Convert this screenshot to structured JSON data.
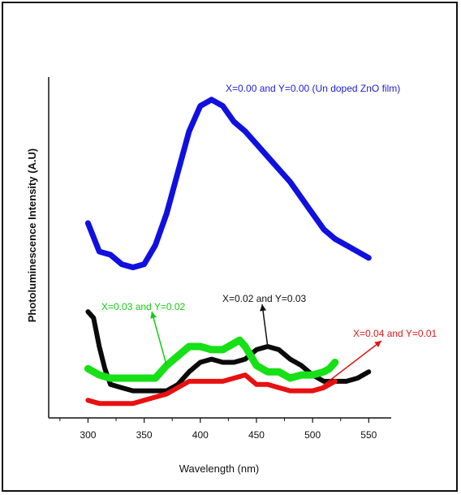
{
  "chart_data": {
    "type": "line",
    "title": "",
    "xlabel": "Wavelength (nm)",
    "ylabel": "Photoluminescence Intensity (A.U)",
    "xlim": [
      265,
      570
    ],
    "ylim": [
      0,
      100
    ],
    "xticks": [
      300,
      350,
      400,
      450,
      500,
      550
    ],
    "xtick_labels": [
      "300",
      "350",
      "400",
      "450",
      "500",
      "550"
    ],
    "grid": false,
    "legend": "none",
    "series": [
      {
        "name": "X=0.00 and Y=0.00 (Un doped ZnO film)",
        "color": "#1010e0",
        "x": [
          300,
          310,
          320,
          330,
          340,
          350,
          360,
          370,
          380,
          390,
          400,
          410,
          420,
          430,
          440,
          450,
          460,
          470,
          480,
          490,
          500,
          510,
          520,
          530,
          540,
          550
        ],
        "y": [
          59,
          50,
          49,
          46,
          45,
          46,
          52,
          62,
          75,
          88,
          96,
          98,
          96,
          91,
          88,
          84,
          80,
          76,
          72,
          67,
          62,
          57,
          54,
          52,
          50,
          48
        ]
      },
      {
        "name": "X=0.02 and Y=0.03",
        "color": "#0a0a0a",
        "x": [
          300,
          305,
          310,
          315,
          320,
          330,
          340,
          350,
          360,
          370,
          380,
          390,
          400,
          410,
          420,
          430,
          440,
          450,
          460,
          470,
          480,
          490,
          500,
          510,
          520,
          530,
          540,
          550
        ],
        "y": [
          31,
          29,
          20,
          13,
          8,
          7,
          6,
          6,
          6,
          6,
          8,
          12,
          15,
          16,
          15,
          15,
          16,
          19,
          20,
          19,
          16,
          14,
          11,
          9,
          9,
          9,
          10,
          12
        ]
      },
      {
        "name": "X=0.03 and Y=0.02",
        "color": "#16e016",
        "x": [
          300,
          310,
          320,
          330,
          340,
          350,
          360,
          370,
          380,
          390,
          400,
          410,
          420,
          430,
          435,
          440,
          450,
          460,
          470,
          480,
          490,
          500,
          510,
          515,
          520
        ],
        "y": [
          13,
          11,
          10,
          10,
          10,
          10,
          10,
          14,
          17,
          20,
          20,
          19,
          19,
          21,
          22,
          20,
          14,
          12,
          12,
          10,
          11,
          11,
          12,
          13,
          15
        ]
      },
      {
        "name": "X=0.04 and Y=0.01",
        "color": "#e81010",
        "x": [
          300,
          310,
          320,
          330,
          340,
          350,
          360,
          370,
          380,
          390,
          400,
          410,
          420,
          430,
          440,
          450,
          460,
          470,
          480,
          490,
          500,
          510,
          520
        ],
        "y": [
          3,
          2,
          2,
          2,
          2,
          3,
          4,
          5,
          7,
          9,
          9,
          9,
          9,
          10,
          11,
          8,
          8,
          7,
          6,
          6,
          6,
          7,
          9
        ]
      }
    ],
    "annotations": [
      {
        "text": "X=0.00 and Y=0.00 (Un doped ZnO film)",
        "color": "#2020d0",
        "series": 0,
        "arrow": false
      },
      {
        "text": "X=0.03 and Y=0.02",
        "color": "#16c816",
        "series": 2,
        "arrow": true,
        "arrow_color": "#16c816"
      },
      {
        "text": "X=0.02 and Y=0.03",
        "color": "#111111",
        "series": 1,
        "arrow": true,
        "arrow_color": "#111111"
      },
      {
        "text": "X=0.04 and Y=0.01",
        "color": "#e01818",
        "series": 3,
        "arrow": true,
        "arrow_color": "#e01818"
      }
    ]
  }
}
